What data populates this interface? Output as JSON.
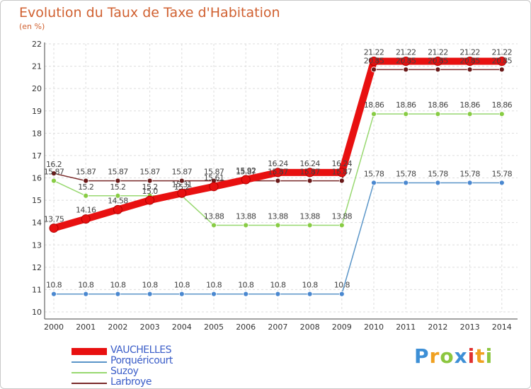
{
  "title": "Evolution du Taux de Taxe d'Habitation",
  "unit_label": "(en %)",
  "brand": {
    "letters": [
      {
        "char": "P",
        "color": "#3d8fd6"
      },
      {
        "char": "r",
        "color": "#f0a020"
      },
      {
        "char": "o",
        "color": "#8cc63f"
      },
      {
        "char": "x",
        "color": "#3d8fd6"
      },
      {
        "char": "i",
        "color": "#e03030"
      },
      {
        "char": "t",
        "color": "#f0a020"
      },
      {
        "char": "i",
        "color": "#8cc63f"
      }
    ]
  },
  "chart_data": {
    "type": "line",
    "title": "Evolution du Taux de Taxe d'Habitation",
    "ylabel": "(en %)",
    "xlabel": "",
    "x": [
      "2000",
      "2001",
      "2002",
      "2003",
      "2004",
      "2005",
      "2006",
      "2007",
      "2008",
      "2009",
      "2010",
      "2011",
      "2012",
      "2013",
      "2014"
    ],
    "ylim": [
      10,
      22
    ],
    "yticks": [
      10,
      11,
      12,
      13,
      14,
      15,
      16,
      17,
      18,
      19,
      20,
      21,
      22
    ],
    "grid": true,
    "legend_position": "bottom-left",
    "series": [
      {
        "name": "VAUCHELLES",
        "color": "#e81010",
        "marker_color": "#e81010",
        "bold": true,
        "values": [
          13.75,
          14.16,
          14.58,
          15.0,
          15.31,
          15.61,
          15.92,
          16.24,
          16.24,
          16.24,
          21.22,
          21.22,
          21.22,
          21.22,
          21.22
        ],
        "labels": [
          "13.75",
          "14.16",
          "14.58",
          "15.0",
          "15.31",
          "15.61",
          "15.92",
          "16.24",
          "16.24",
          "16.24",
          "21.22",
          "21.22",
          "21.22",
          "21.22",
          "21.22"
        ]
      },
      {
        "name": "Porquéricourt",
        "color": "#5a95c8",
        "marker_color": "#4a88d0",
        "bold": false,
        "values": [
          10.8,
          10.8,
          10.8,
          10.8,
          10.8,
          10.8,
          10.8,
          10.8,
          10.8,
          10.8,
          15.78,
          15.78,
          15.78,
          15.78,
          15.78
        ],
        "labels": [
          "10.8",
          "10.8",
          "10.8",
          "10.8",
          "10.8",
          "10.8",
          "10.8",
          "10.8",
          "10.8",
          "10.8",
          "15.78",
          "15.78",
          "15.78",
          "15.78",
          "15.78"
        ]
      },
      {
        "name": "Suzoy",
        "color": "#98d870",
        "marker_color": "#88cc44",
        "bold": false,
        "values": [
          15.87,
          15.2,
          15.2,
          15.2,
          15.2,
          13.88,
          13.88,
          13.88,
          13.88,
          13.88,
          18.86,
          18.86,
          18.86,
          18.86,
          18.86
        ],
        "labels": [
          "15.87",
          "15.2",
          "15.2",
          "15.2",
          "15.2",
          "13.88",
          "13.88",
          "13.88",
          "13.88",
          "13.88",
          "18.86",
          "18.86",
          "18.86",
          "18.86",
          "18.86"
        ]
      },
      {
        "name": "Larbroye",
        "color": "#7a2a2a",
        "marker_color": "#6a1818",
        "bold": false,
        "values": [
          16.2,
          15.87,
          15.87,
          15.87,
          15.87,
          15.87,
          15.87,
          15.87,
          15.87,
          15.87,
          20.85,
          20.85,
          20.85,
          20.85,
          20.85
        ],
        "labels": [
          "16.2",
          "15.87",
          "15.87",
          "15.87",
          "15.87",
          "15.87",
          "15.87",
          "15.87",
          "15.87",
          "15.87",
          "20.85",
          "20.85",
          "20.85",
          "20.85",
          "20.85"
        ]
      }
    ]
  }
}
